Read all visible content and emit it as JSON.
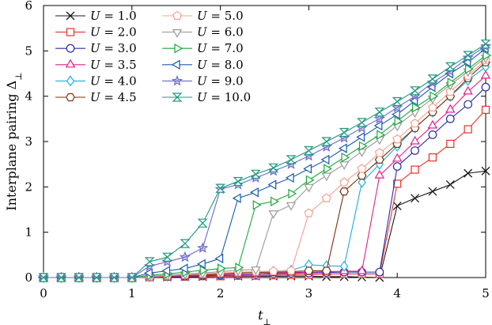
{
  "chart_data": {
    "type": "line",
    "title": "",
    "xlabel": "t_⊥",
    "ylabel": "Interplane pairing  Δ_⊥",
    "xlim": [
      0,
      5
    ],
    "ylim": [
      0,
      6
    ],
    "xticks": [
      0,
      1,
      2,
      3,
      4,
      5
    ],
    "yticks": [
      0,
      1,
      2,
      3,
      4,
      5,
      6
    ],
    "grid": false,
    "legend_position": "top-left",
    "legend_columns": 2,
    "series": [
      {
        "name": "U = 1.0",
        "color": "#1a1a1a",
        "marker": "x",
        "x": [
          0,
          0.2,
          0.4,
          0.6,
          0.8,
          1.0,
          1.2,
          1.4,
          1.6,
          1.8,
          2.0,
          2.2,
          2.4,
          2.6,
          2.8,
          3.0,
          3.2,
          3.4,
          3.6,
          3.8,
          4.0,
          4.2,
          4.4,
          4.6,
          4.8,
          5.0
        ],
        "y": [
          0,
          0,
          0,
          0,
          0,
          0,
          0.005,
          0.01,
          0.02,
          0.02,
          0.03,
          0.03,
          0.03,
          0.03,
          0.03,
          0.03,
          0.02,
          0.02,
          0.01,
          0,
          1.58,
          1.75,
          1.9,
          2.05,
          2.3,
          2.35
        ]
      },
      {
        "name": "U = 2.0",
        "color": "#e8302a",
        "marker": "square",
        "x": [
          0,
          0.2,
          0.4,
          0.6,
          0.8,
          1.0,
          1.2,
          1.4,
          1.6,
          1.8,
          2.0,
          2.2,
          2.4,
          2.6,
          2.8,
          3.0,
          3.2,
          3.4,
          3.6,
          3.8,
          4.0,
          4.2,
          4.4,
          4.6,
          4.8,
          5.0
        ],
        "y": [
          0,
          0,
          0,
          0,
          0,
          0,
          0.01,
          0.02,
          0.02,
          0.03,
          0.03,
          0.04,
          0.04,
          0.05,
          0.06,
          0.06,
          0.08,
          0.08,
          0.08,
          0.08,
          2.07,
          2.38,
          2.65,
          2.95,
          3.27,
          3.7
        ]
      },
      {
        "name": "U = 3.0",
        "color": "#2b2ba8",
        "marker": "circle",
        "x": [
          0,
          0.2,
          0.4,
          0.6,
          0.8,
          1.0,
          1.2,
          1.4,
          1.6,
          1.8,
          2.0,
          2.2,
          2.4,
          2.6,
          2.8,
          3.0,
          3.2,
          3.4,
          3.6,
          3.8,
          4.0,
          4.2,
          4.4,
          4.6,
          4.8,
          5.0
        ],
        "y": [
          0,
          0,
          0,
          0,
          0,
          0,
          0.01,
          0.02,
          0.03,
          0.04,
          0.05,
          0.06,
          0.07,
          0.08,
          0.09,
          0.1,
          0.11,
          0.12,
          0.12,
          0.12,
          2.45,
          2.8,
          3.15,
          3.5,
          3.82,
          4.2
        ]
      },
      {
        "name": "U = 3.5",
        "color": "#e0208a",
        "marker": "triangle-up",
        "x": [
          0,
          0.2,
          0.4,
          0.6,
          0.8,
          1.0,
          1.2,
          1.4,
          1.6,
          1.8,
          2.0,
          2.2,
          2.4,
          2.6,
          2.8,
          3.0,
          3.2,
          3.4,
          3.6,
          3.8,
          4.0,
          4.2,
          4.4,
          4.6,
          4.8,
          5.0
        ],
        "y": [
          0,
          0,
          0,
          0,
          0,
          0,
          0.01,
          0.02,
          0.04,
          0.05,
          0.06,
          0.07,
          0.08,
          0.1,
          0.11,
          0.12,
          0.13,
          0.14,
          0.14,
          2.25,
          2.62,
          3.0,
          3.35,
          3.7,
          4.1,
          4.45
        ]
      },
      {
        "name": "U = 4.0",
        "color": "#1ab0e0",
        "marker": "diamond",
        "x": [
          0,
          0.2,
          0.4,
          0.6,
          0.8,
          1.0,
          1.2,
          1.4,
          1.6,
          1.8,
          2.0,
          2.2,
          2.4,
          2.6,
          2.8,
          3.0,
          3.2,
          3.4,
          3.6,
          3.8,
          4.0,
          4.2,
          4.4,
          4.6,
          4.8,
          5.0
        ],
        "y": [
          0,
          0,
          0,
          0,
          0,
          0,
          0.02,
          0.03,
          0.05,
          0.06,
          0.08,
          0.1,
          0.12,
          0.14,
          0.16,
          0.28,
          0.26,
          0.25,
          2.1,
          2.5,
          2.9,
          3.3,
          3.65,
          4.0,
          4.35,
          4.65
        ]
      },
      {
        "name": "U = 4.5",
        "color": "#7a3010",
        "marker": "hexagon",
        "x": [
          0,
          0.2,
          0.4,
          0.6,
          0.8,
          1.0,
          1.2,
          1.4,
          1.6,
          1.8,
          2.0,
          2.2,
          2.4,
          2.6,
          2.8,
          3.0,
          3.2,
          3.4,
          3.6,
          3.8,
          4.0,
          4.2,
          4.4,
          4.6,
          4.8,
          5.0
        ],
        "y": [
          0,
          0,
          0,
          0,
          0,
          0,
          0.02,
          0.03,
          0.05,
          0.06,
          0.08,
          0.1,
          0.11,
          0.12,
          0.13,
          0.15,
          0.15,
          1.9,
          2.25,
          2.6,
          2.95,
          3.3,
          3.65,
          4.0,
          4.4,
          4.75
        ]
      },
      {
        "name": "U = 5.0",
        "color": "#f4a090",
        "marker": "pentagon",
        "x": [
          0,
          0.2,
          0.4,
          0.6,
          0.8,
          1.0,
          1.2,
          1.4,
          1.6,
          1.8,
          2.0,
          2.2,
          2.4,
          2.6,
          2.8,
          3.0,
          3.2,
          3.4,
          3.6,
          3.8,
          4.0,
          4.2,
          4.4,
          4.6,
          4.8,
          5.0
        ],
        "y": [
          0,
          0,
          0,
          0,
          0,
          0,
          0.02,
          0.04,
          0.06,
          0.08,
          0.1,
          0.12,
          0.13,
          0.14,
          0.15,
          1.42,
          1.75,
          2.1,
          2.4,
          2.75,
          3.05,
          3.4,
          3.75,
          4.1,
          4.45,
          4.8
        ]
      },
      {
        "name": "U = 6.0",
        "color": "#9a9a9a",
        "marker": "triangle-down",
        "x": [
          0,
          0.2,
          0.4,
          0.6,
          0.8,
          1.0,
          1.2,
          1.4,
          1.6,
          1.8,
          2.0,
          2.2,
          2.4,
          2.6,
          2.8,
          3.0,
          3.2,
          3.4,
          3.6,
          3.8,
          4.0,
          4.2,
          4.4,
          4.6,
          4.8,
          5.0
        ],
        "y": [
          0,
          0,
          0,
          0,
          0,
          0,
          0.03,
          0.05,
          0.08,
          0.1,
          0.13,
          0.16,
          0.18,
          1.42,
          1.6,
          2.0,
          2.25,
          2.5,
          2.78,
          3.05,
          3.35,
          3.65,
          3.95,
          4.25,
          4.55,
          4.85
        ]
      },
      {
        "name": "U = 7.0",
        "color": "#1aaa3a",
        "marker": "triangle-right",
        "x": [
          0,
          0.2,
          0.4,
          0.6,
          0.8,
          1.0,
          1.2,
          1.4,
          1.6,
          1.8,
          2.0,
          2.2,
          2.4,
          2.6,
          2.8,
          3.0,
          3.2,
          3.4,
          3.6,
          3.8,
          4.0,
          4.2,
          4.4,
          4.6,
          4.8,
          5.0
        ],
        "y": [
          0,
          0,
          0,
          0,
          0,
          0,
          0.05,
          0.08,
          0.12,
          0.16,
          0.2,
          0.22,
          1.6,
          1.68,
          1.85,
          2.15,
          2.4,
          2.65,
          2.9,
          3.15,
          3.45,
          3.75,
          4.0,
          4.3,
          4.6,
          4.9
        ]
      },
      {
        "name": "U = 8.0",
        "color": "#1a5ab0",
        "marker": "triangle-left",
        "x": [
          0,
          0.2,
          0.4,
          0.6,
          0.8,
          1.0,
          1.2,
          1.4,
          1.6,
          1.8,
          2.0,
          2.2,
          2.4,
          2.6,
          2.8,
          3.0,
          3.2,
          3.4,
          3.6,
          3.8,
          4.0,
          4.2,
          4.4,
          4.6,
          4.8,
          5.0
        ],
        "y": [
          0,
          0,
          0,
          0,
          0,
          0,
          0.1,
          0.15,
          0.2,
          0.3,
          0.42,
          1.75,
          1.88,
          2.05,
          2.2,
          2.4,
          2.6,
          2.85,
          3.1,
          3.35,
          3.6,
          3.9,
          4.2,
          4.5,
          4.75,
          5.05
        ]
      },
      {
        "name": "U = 9.0",
        "color": "#6a6aca",
        "marker": "star",
        "x": [
          0,
          0.2,
          0.4,
          0.6,
          0.8,
          1.0,
          1.2,
          1.4,
          1.6,
          1.8,
          2.0,
          2.2,
          2.4,
          2.6,
          2.8,
          3.0,
          3.2,
          3.4,
          3.6,
          3.8,
          4.0,
          4.2,
          4.4,
          4.6,
          4.8,
          5.0
        ],
        "y": [
          0,
          0,
          0,
          0,
          0,
          0,
          0.25,
          0.35,
          0.45,
          0.65,
          1.95,
          2.05,
          2.2,
          2.35,
          2.5,
          2.68,
          2.88,
          3.08,
          3.3,
          3.5,
          3.75,
          4.0,
          4.3,
          4.55,
          4.85,
          5.1
        ]
      },
      {
        "name": "U = 10.0",
        "color": "#1a9a7a",
        "marker": "hourglass",
        "x": [
          0,
          0.2,
          0.4,
          0.6,
          0.8,
          1.0,
          1.2,
          1.4,
          1.6,
          1.8,
          2.0,
          2.2,
          2.4,
          2.6,
          2.8,
          3.0,
          3.2,
          3.4,
          3.6,
          3.8,
          4.0,
          4.2,
          4.4,
          4.6,
          4.8,
          5.0
        ],
        "y": [
          0,
          0,
          0,
          0,
          0,
          0,
          0.35,
          0.45,
          0.75,
          1.2,
          1.97,
          2.12,
          2.28,
          2.42,
          2.6,
          2.8,
          3.0,
          3.2,
          3.42,
          3.65,
          3.88,
          4.12,
          4.38,
          4.65,
          4.9,
          5.15
        ]
      }
    ]
  }
}
